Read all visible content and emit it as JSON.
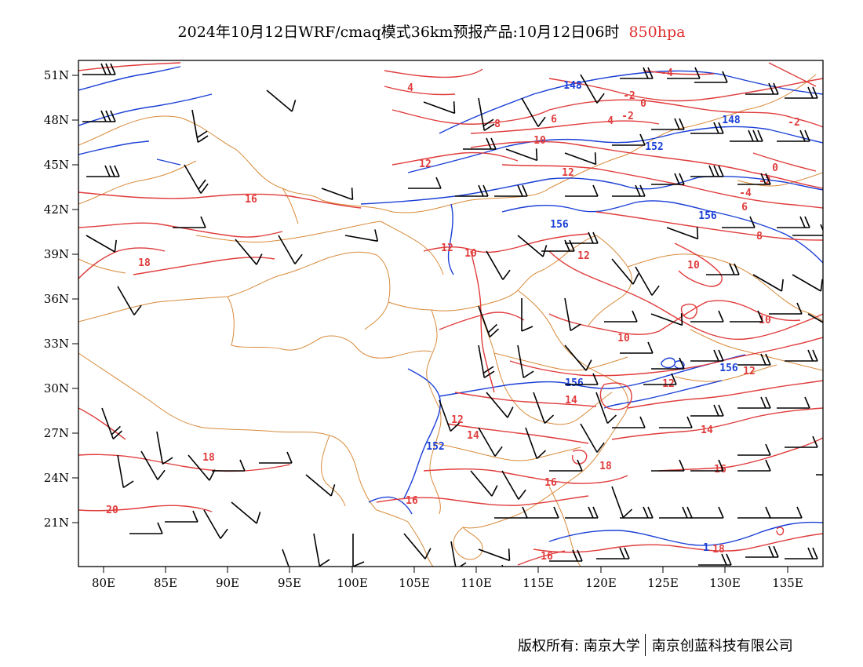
{
  "title": {
    "main": "2024年10月12日WRF/cmaq模式36km预报产品:10月12日06时",
    "level": "850hpa"
  },
  "colors": {
    "temperature_contour": "#e03c3c",
    "height_contour": "#1a3fd6",
    "boundary": "#d88a3a",
    "wind_barb": "#000000",
    "level_text": "#e03030"
  },
  "axes": {
    "latitude_labels": [
      "51N",
      "48N",
      "45N",
      "42N",
      "39N",
      "36N",
      "33N",
      "30N",
      "27N",
      "24N",
      "21N"
    ],
    "longitude_labels": [
      "80E",
      "85E",
      "90E",
      "95E",
      "100E",
      "105E",
      "110E",
      "115E",
      "120E",
      "125E",
      "130E",
      "135E"
    ]
  },
  "temperature_labels": [
    "4",
    "-2",
    "0",
    "-4",
    "-2",
    "-2",
    "8",
    "6",
    "4",
    "10",
    "12",
    "12",
    "0",
    "-2",
    "-4",
    "6",
    "8",
    "16",
    "12",
    "10",
    "12",
    "18",
    "10",
    "10",
    "10",
    "12",
    "12",
    "14",
    "14",
    "12",
    "14",
    "18",
    "18",
    "16",
    "16",
    "16",
    "20",
    "16",
    "18"
  ],
  "height_labels": [
    "148",
    "148",
    "152",
    "156",
    "156",
    "156",
    "156",
    "152",
    "1"
  ],
  "copyright": {
    "left": "版权所有: 南京大学",
    "right": "南京创蓝科技有限公司"
  }
}
